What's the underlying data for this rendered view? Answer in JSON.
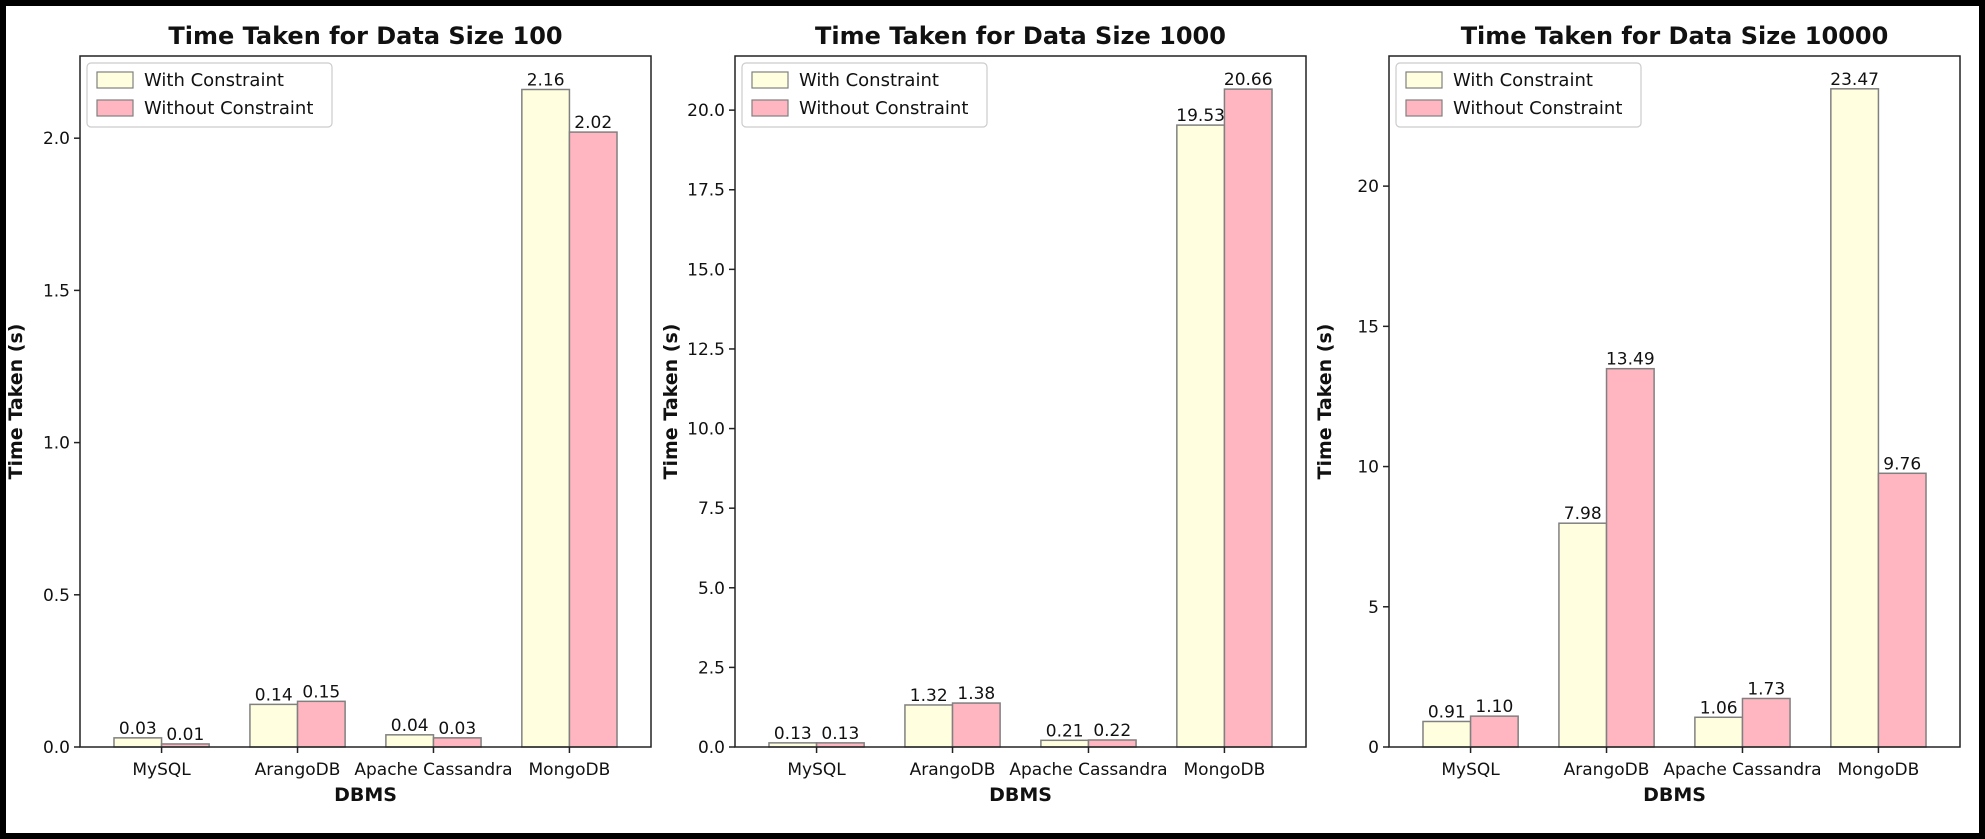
{
  "chart_data": [
    {
      "type": "bar",
      "title": "Time Taken for Data Size 100",
      "xlabel": "DBMS",
      "ylabel": "Time Taken (s)",
      "categories": [
        "MySQL",
        "ArangoDB",
        "Apache Cassandra",
        "MongoDB"
      ],
      "ylim": [
        0,
        2.27
      ],
      "yticks": [
        0.0,
        0.5,
        1.0,
        1.5,
        2.0
      ],
      "ytick_labels": [
        "0.0",
        "0.5",
        "1.0",
        "1.5",
        "2.0"
      ],
      "series": [
        {
          "name": "With Constraint",
          "values": [
            0.03,
            0.14,
            0.04,
            2.16
          ],
          "labels": [
            "0.03",
            "0.14",
            "0.04",
            "2.16"
          ]
        },
        {
          "name": "Without Constraint",
          "values": [
            0.01,
            0.15,
            0.03,
            2.02
          ],
          "labels": [
            "0.01",
            "0.15",
            "0.03",
            "2.02"
          ]
        }
      ],
      "legend": "top-left",
      "grid": false
    },
    {
      "type": "bar",
      "title": "Time Taken for Data Size 1000",
      "xlabel": "DBMS",
      "ylabel": "Time Taken (s)",
      "categories": [
        "MySQL",
        "ArangoDB",
        "Apache Cassandra",
        "MongoDB"
      ],
      "ylim": [
        0,
        21.7
      ],
      "yticks": [
        0.0,
        2.5,
        5.0,
        7.5,
        10.0,
        12.5,
        15.0,
        17.5,
        20.0
      ],
      "ytick_labels": [
        "0.0",
        "2.5",
        "5.0",
        "7.5",
        "10.0",
        "12.5",
        "15.0",
        "17.5",
        "20.0"
      ],
      "series": [
        {
          "name": "With Constraint",
          "values": [
            0.13,
            1.32,
            0.21,
            19.53
          ],
          "labels": [
            "0.13",
            "1.32",
            "0.21",
            "19.53"
          ]
        },
        {
          "name": "Without Constraint",
          "values": [
            0.13,
            1.38,
            0.22,
            20.66
          ],
          "labels": [
            "0.13",
            "1.38",
            "0.22",
            "20.66"
          ]
        }
      ],
      "legend": "top-left",
      "grid": false
    },
    {
      "type": "bar",
      "title": "Time Taken for Data Size 10000",
      "xlabel": "DBMS",
      "ylabel": "Time Taken (s)",
      "categories": [
        "MySQL",
        "ArangoDB",
        "Apache Cassandra",
        "MongoDB"
      ],
      "ylim": [
        0,
        24.64
      ],
      "yticks": [
        0,
        5,
        10,
        15,
        20
      ],
      "ytick_labels": [
        "0",
        "5",
        "10",
        "15",
        "20"
      ],
      "series": [
        {
          "name": "With Constraint",
          "values": [
            0.91,
            7.98,
            1.06,
            23.47
          ],
          "labels": [
            "0.91",
            "7.98",
            "1.06",
            "23.47"
          ]
        },
        {
          "name": "Without Constraint",
          "values": [
            1.1,
            13.49,
            1.73,
            9.76
          ],
          "labels": [
            "1.10",
            "13.49",
            "1.73",
            "9.76"
          ]
        }
      ],
      "legend": "top-left",
      "grid": false
    }
  ],
  "colors": {
    "with_constraint": "#ffffe0",
    "without_constraint": "#ffb6c1",
    "bar_edge": "#808080"
  }
}
